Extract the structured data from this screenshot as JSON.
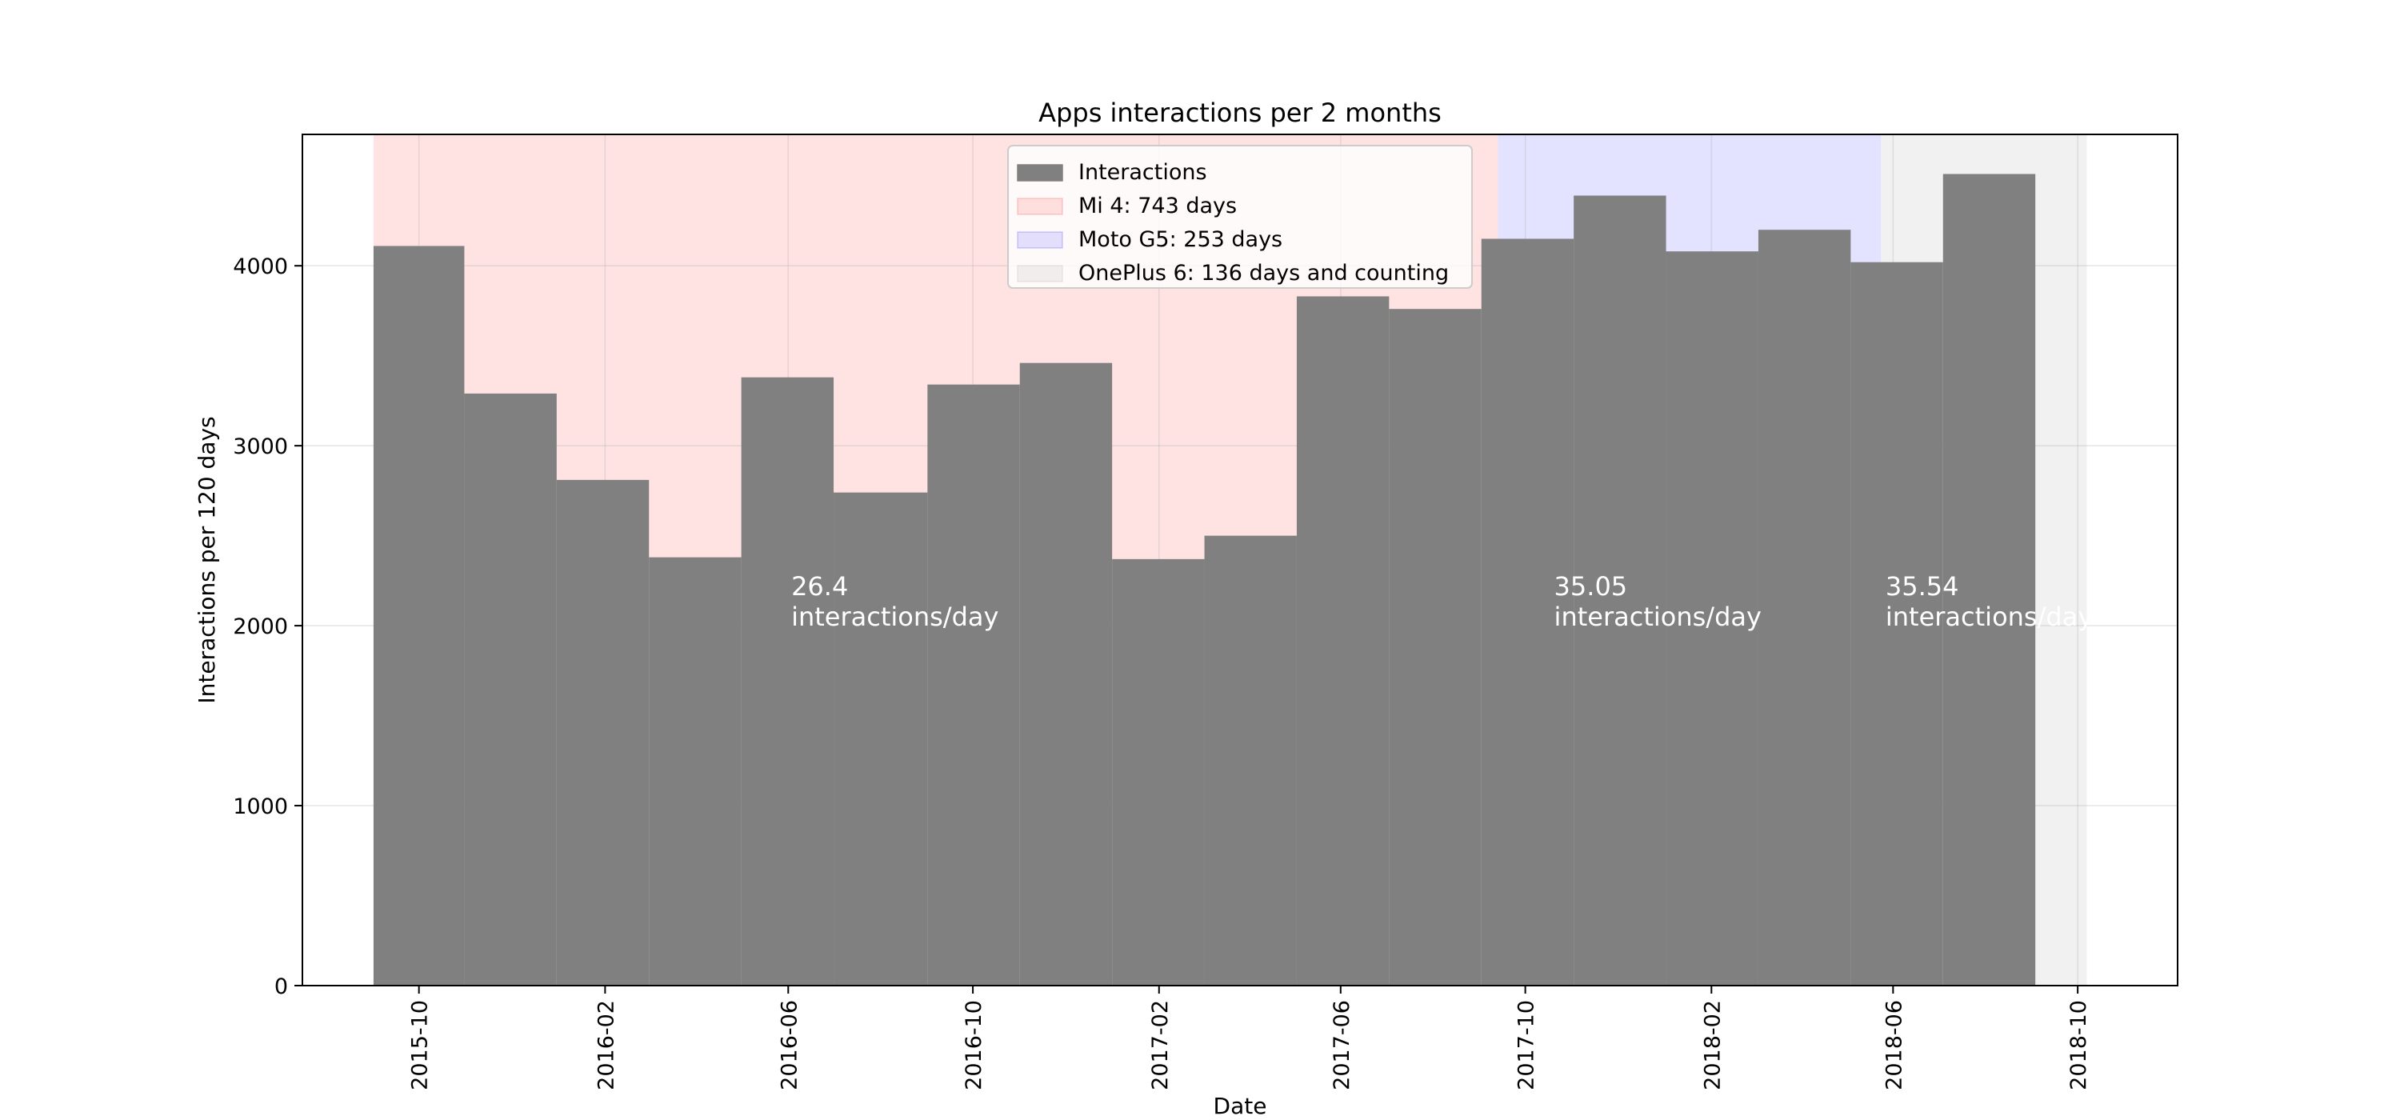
{
  "chart_data": {
    "type": "bar",
    "title": "Apps interactions per 2 months",
    "xlabel": "Date",
    "ylabel": "Interactions per 120 days",
    "xlim": [
      "2015-07-16",
      "2018-12-06"
    ],
    "ylim": [
      0,
      4730
    ],
    "xticks": [
      "2015-10",
      "2016-02",
      "2016-06",
      "2016-10",
      "2017-02",
      "2017-06",
      "2017-10",
      "2018-02",
      "2018-06",
      "2018-10"
    ],
    "yticks": [
      0,
      1000,
      2000,
      3000,
      4000
    ],
    "grid": true,
    "legend_position": "top-center",
    "series": [
      {
        "name": "Interactions",
        "color": "#808080",
        "bars": [
          {
            "start": "2015-09-01",
            "end": "2015-10-31",
            "value": 4110
          },
          {
            "start": "2015-10-31",
            "end": "2015-12-31",
            "value": 3290
          },
          {
            "start": "2015-12-31",
            "end": "2016-03-01",
            "value": 2810
          },
          {
            "start": "2016-03-01",
            "end": "2016-05-01",
            "value": 2380
          },
          {
            "start": "2016-05-01",
            "end": "2016-07-01",
            "value": 3380
          },
          {
            "start": "2016-07-01",
            "end": "2016-09-01",
            "value": 2740
          },
          {
            "start": "2016-09-01",
            "end": "2016-11-01",
            "value": 3340
          },
          {
            "start": "2016-11-01",
            "end": "2017-01-01",
            "value": 3460
          },
          {
            "start": "2017-01-01",
            "end": "2017-03-03",
            "value": 2370
          },
          {
            "start": "2017-03-03",
            "end": "2017-05-03",
            "value": 2500
          },
          {
            "start": "2017-05-03",
            "end": "2017-07-03",
            "value": 3830
          },
          {
            "start": "2017-07-03",
            "end": "2017-09-02",
            "value": 3760
          },
          {
            "start": "2017-09-02",
            "end": "2017-11-02",
            "value": 4150
          },
          {
            "start": "2017-11-02",
            "end": "2018-01-02",
            "value": 4390
          },
          {
            "start": "2018-01-02",
            "end": "2018-03-04",
            "value": 4080
          },
          {
            "start": "2018-03-04",
            "end": "2018-05-04",
            "value": 4200
          },
          {
            "start": "2018-05-04",
            "end": "2018-07-04",
            "value": 4020
          },
          {
            "start": "2018-07-04",
            "end": "2018-09-03",
            "value": 4510
          }
        ]
      }
    ],
    "spans": [
      {
        "name": "Mi 4: 743 days",
        "start": "2015-09-01",
        "end": "2017-09-13",
        "color": "#ff0000",
        "alpha": 0.11,
        "rate": "26.4",
        "rate_unit": "interactions/day",
        "rate_label_x": "2016-06-03"
      },
      {
        "name": "Moto G5: 253 days",
        "start": "2017-09-13",
        "end": "2018-05-24",
        "color": "#0000ff",
        "alpha": 0.11,
        "rate": "35.05",
        "rate_unit": "interactions/day",
        "rate_label_x": "2017-10-20"
      },
      {
        "name": "OnePlus 6: 136 days and counting",
        "start": "2018-05-24",
        "end": "2018-10-07",
        "color": "#d0d0d0",
        "alpha": 0.3,
        "rate": "35.54",
        "rate_unit": "interactions/day",
        "rate_label_x": "2018-05-27"
      }
    ],
    "annotation_y": 2000
  }
}
